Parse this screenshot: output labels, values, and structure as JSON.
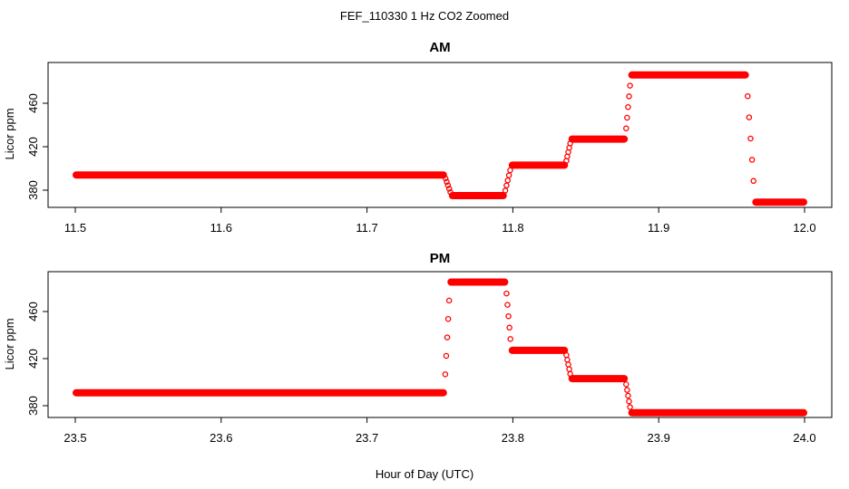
{
  "figure": {
    "title": "FEF_110330  1 Hz CO2 Zoomed",
    "xlabel": "Hour of Day (UTC)"
  },
  "colors": {
    "points": "#ff0000",
    "axes": "#000000"
  },
  "chart_data": [
    {
      "type": "scatter",
      "title": "AM",
      "ylabel": "Licor ppm",
      "xlim": [
        11.5,
        12.0
      ],
      "ylim": [
        348,
        490
      ],
      "xticks": [
        "11.5",
        "11.6",
        "11.7",
        "11.8",
        "11.9",
        "12.0"
      ],
      "yticks": [
        "380",
        "420",
        "460"
      ],
      "series": [
        {
          "segments": [
            {
              "x": [
                11.5,
                11.753
              ],
              "y": 394
            },
            {
              "x": [
                11.758,
                11.794
              ],
              "y": 375
            },
            {
              "x": [
                11.799,
                11.836
              ],
              "y": 403
            },
            {
              "x": [
                11.84,
                11.877
              ],
              "y": 427
            },
            {
              "x": [
                11.881,
                11.96
              ],
              "y": 486
            },
            {
              "x": [
                11.966,
                12.0
              ],
              "y": 369
            }
          ]
        }
      ]
    },
    {
      "type": "scatter",
      "title": "PM",
      "ylabel": "Licor ppm",
      "xlim": [
        23.5,
        24.0
      ],
      "ylim": [
        348,
        490
      ],
      "xticks": [
        "23.5",
        "23.6",
        "23.7",
        "23.8",
        "23.9",
        "24.0"
      ],
      "yticks": [
        "380",
        "420",
        "460"
      ],
      "series": [
        {
          "segments": [
            {
              "x": [
                23.5,
                23.753
              ],
              "y": 391
            },
            {
              "x": [
                23.757,
                23.795
              ],
              "y": 485
            },
            {
              "x": [
                23.799,
                23.836
              ],
              "y": 427
            },
            {
              "x": [
                23.84,
                23.877
              ],
              "y": 403
            },
            {
              "x": [
                23.881,
                24.0
              ],
              "y": 374
            }
          ]
        }
      ]
    }
  ]
}
